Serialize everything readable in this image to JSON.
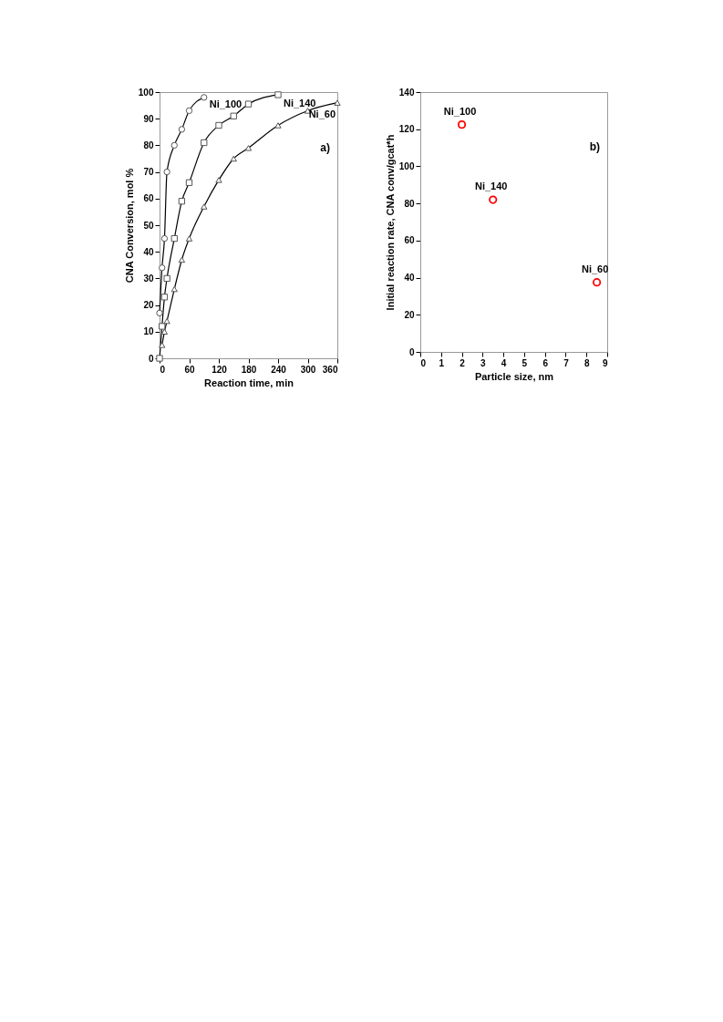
{
  "chart_data": [
    {
      "type": "line",
      "xlabel": "Reaction time, min",
      "ylabel": "CNA Conversion, mol %",
      "xlim": [
        0,
        360
      ],
      "xticks": [
        0,
        60,
        120,
        180,
        240,
        300,
        360
      ],
      "ylim": [
        0,
        100
      ],
      "yticks": [
        0,
        10,
        20,
        30,
        40,
        50,
        60,
        70,
        80,
        90,
        100
      ],
      "grid": false,
      "line_style": "solid",
      "annotations": [
        "a)"
      ],
      "series": [
        {
          "name": "Ni_100",
          "color": "#000000",
          "marker": "circle",
          "x": [
            0,
            5,
            10,
            15,
            30,
            45,
            60,
            90
          ],
          "values": [
            17,
            34,
            45,
            70,
            80,
            86,
            93,
            98
          ]
        },
        {
          "name": "Ni_140",
          "color": "#000000",
          "marker": "square",
          "x": [
            0,
            5,
            10,
            15,
            30,
            45,
            60,
            90,
            120,
            150,
            180,
            240
          ],
          "values": [
            0,
            12,
            23,
            30,
            45,
            59,
            66,
            81,
            87.5,
            91,
            95.5,
            99
          ]
        },
        {
          "name": "Ni_60",
          "color": "#000000",
          "marker": "triangle",
          "x": [
            5,
            10,
            15,
            30,
            45,
            60,
            90,
            120,
            150,
            180,
            240,
            300,
            360
          ],
          "values": [
            5,
            10,
            14,
            26,
            37,
            45,
            57,
            67,
            75,
            79,
            87.5,
            93,
            96
          ]
        }
      ]
    },
    {
      "type": "scatter",
      "xlabel": "Particle size, nm",
      "ylabel": "Initial reaction rate, CNA conv/gcat*h",
      "xlim": [
        0,
        9
      ],
      "xticks": [
        0,
        1,
        2,
        3,
        4,
        5,
        6,
        7,
        8,
        9
      ],
      "ylim": [
        0,
        140
      ],
      "yticks": [
        0,
        20,
        40,
        60,
        80,
        100,
        120,
        140
      ],
      "grid": false,
      "marker": "circle",
      "x": [
        2,
        3.5,
        8.5
      ],
      "values": [
        122.5,
        82,
        37.5
      ],
      "color": "#ff0000",
      "annotations": [
        "b)",
        {
          "text": "Ni_100",
          "x": 2,
          "y": 122.5
        },
        {
          "text": "Ni_140",
          "x": 3.5,
          "y": 82
        },
        {
          "text": "Ni_60",
          "x": 8.5,
          "y": 37.5
        }
      ]
    }
  ]
}
